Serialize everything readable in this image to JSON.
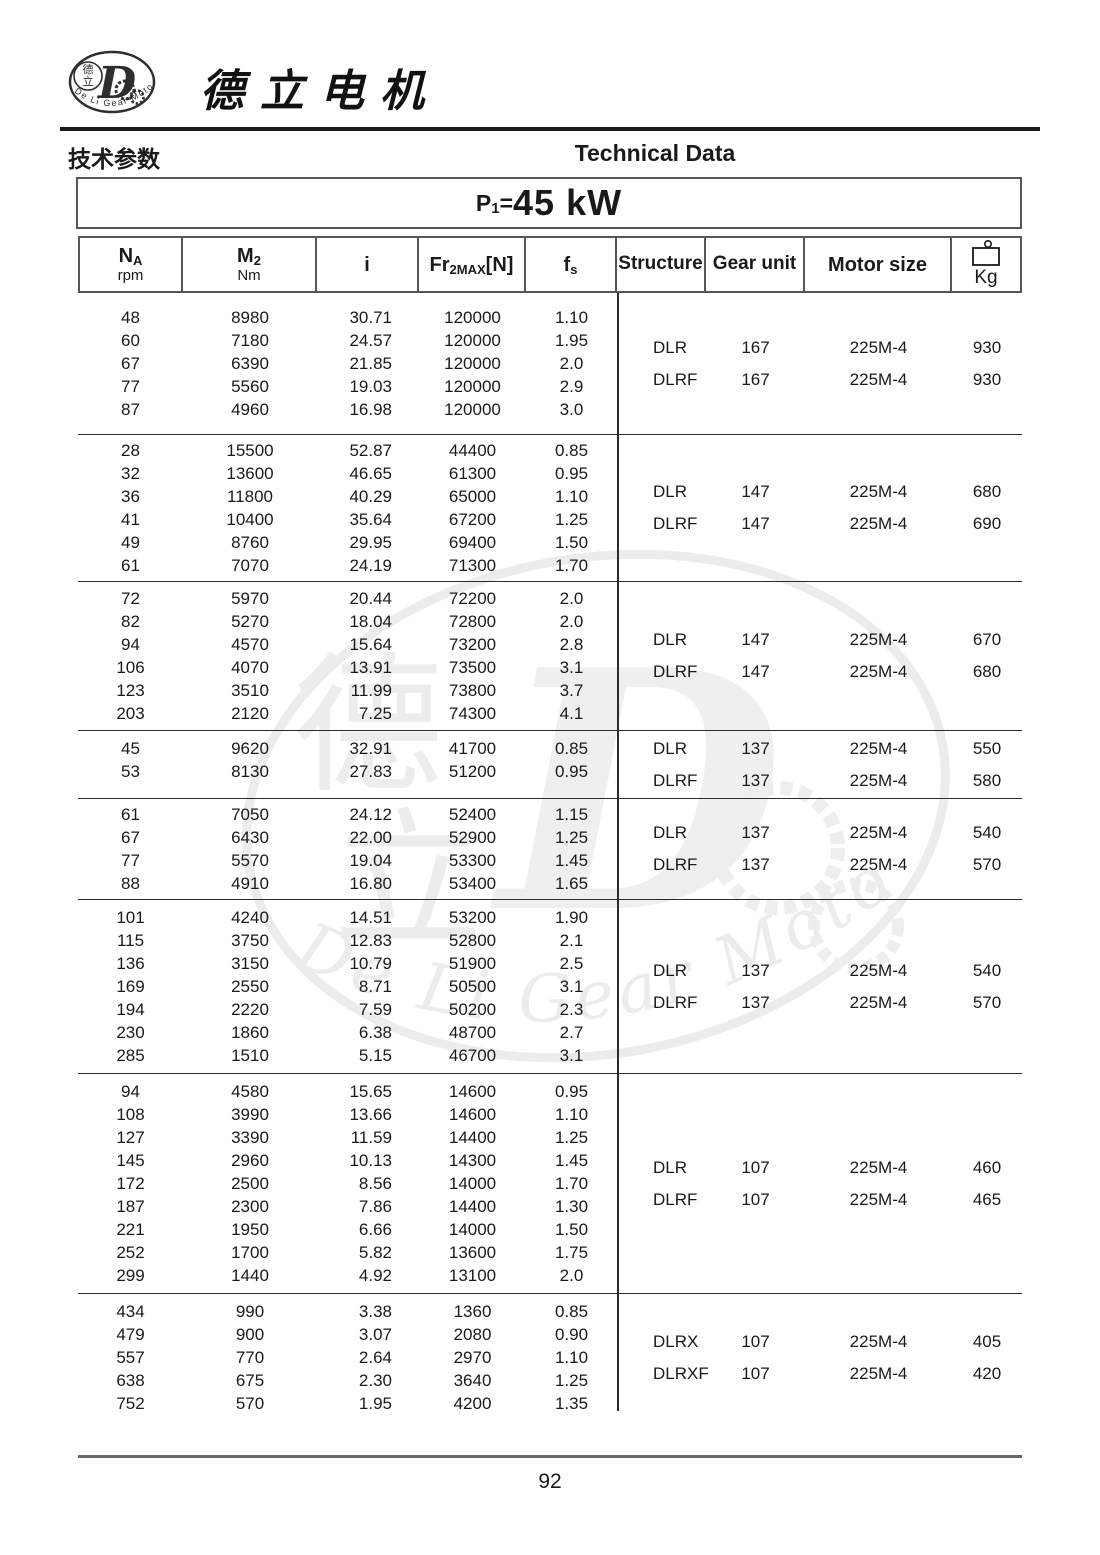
{
  "brand": {
    "name": "德立电机",
    "logo": {
      "letter": "D",
      "cn_top": "德",
      "cn_bottom": "立",
      "arc_text": "De Li Gear Motor"
    }
  },
  "section": {
    "title_cn": "技术参数",
    "title_en": "Technical Data"
  },
  "power": {
    "symbol": "P",
    "subscript": "1",
    "equals": "=",
    "value": "45 kW"
  },
  "columns": {
    "na": {
      "symbol": "N",
      "sub": "A",
      "unit": "rpm"
    },
    "m2": {
      "symbol": "M",
      "sub": "2",
      "unit": "Nm"
    },
    "ratio": {
      "symbol": "i"
    },
    "fr": {
      "symbol": "Fr",
      "sub": "2MAX",
      "bracket": "[N]"
    },
    "fs": {
      "symbol": "f",
      "sub": "s"
    },
    "structure": "Structure",
    "gear_unit": "Gear unit",
    "motor_size": "Motor size",
    "weight_unit": "Kg",
    "weight_icon": "weight-icon"
  },
  "table": {
    "groups": [
      {
        "rows": [
          [
            "48",
            "8980",
            "30.71",
            "120000",
            "1.10"
          ],
          [
            "60",
            "7180",
            "24.57",
            "120000",
            "1.95"
          ],
          [
            "67",
            "6390",
            "21.85",
            "120000",
            "2.0"
          ],
          [
            "77",
            "5560",
            "19.03",
            "120000",
            "2.9"
          ],
          [
            "87",
            "4960",
            "16.98",
            "120000",
            "3.0"
          ]
        ],
        "variants": [
          {
            "structure": "DLR",
            "gear_unit": "167",
            "motor_size": "225M-4",
            "weight": "930"
          },
          {
            "structure": "DLRF",
            "gear_unit": "167",
            "motor_size": "225M-4",
            "weight": "930"
          }
        ]
      },
      {
        "rows": [
          [
            "28",
            "15500",
            "52.87",
            "44400",
            "0.85"
          ],
          [
            "32",
            "13600",
            "46.65",
            "61300",
            "0.95"
          ],
          [
            "36",
            "11800",
            "40.29",
            "65000",
            "1.10"
          ],
          [
            "41",
            "10400",
            "35.64",
            "67200",
            "1.25"
          ],
          [
            "49",
            "8760",
            "29.95",
            "69400",
            "1.50"
          ],
          [
            "61",
            "7070",
            "24.19",
            "71300",
            "1.70"
          ]
        ],
        "variants": [
          {
            "structure": "DLR",
            "gear_unit": "147",
            "motor_size": "225M-4",
            "weight": "680"
          },
          {
            "structure": "DLRF",
            "gear_unit": "147",
            "motor_size": "225M-4",
            "weight": "690"
          }
        ]
      },
      {
        "rows": [
          [
            "72",
            "5970",
            "20.44",
            "72200",
            "2.0"
          ],
          [
            "82",
            "5270",
            "18.04",
            "72800",
            "2.0"
          ],
          [
            "94",
            "4570",
            "15.64",
            "73200",
            "2.8"
          ],
          [
            "106",
            "4070",
            "13.91",
            "73500",
            "3.1"
          ],
          [
            "123",
            "3510",
            "11.99",
            "73800",
            "3.7"
          ],
          [
            "203",
            "2120",
            "7.25",
            "74300",
            "4.1"
          ]
        ],
        "variants": [
          {
            "structure": "DLR",
            "gear_unit": "147",
            "motor_size": "225M-4",
            "weight": "670"
          },
          {
            "structure": "DLRF",
            "gear_unit": "147",
            "motor_size": "225M-4",
            "weight": "680"
          }
        ]
      },
      {
        "rows": [
          [
            "45",
            "9620",
            "32.91",
            "41700",
            "0.85"
          ],
          [
            "53",
            "8130",
            "27.83",
            "51200",
            "0.95"
          ]
        ],
        "variants": [
          {
            "structure": "DLR",
            "gear_unit": "137",
            "motor_size": "225M-4",
            "weight": "550"
          },
          {
            "structure": "DLRF",
            "gear_unit": "137",
            "motor_size": "225M-4",
            "weight": "580"
          }
        ]
      },
      {
        "rows": [
          [
            "61",
            "7050",
            "24.12",
            "52400",
            "1.15"
          ],
          [
            "67",
            "6430",
            "22.00",
            "52900",
            "1.25"
          ],
          [
            "77",
            "5570",
            "19.04",
            "53300",
            "1.45"
          ],
          [
            "88",
            "4910",
            "16.80",
            "53400",
            "1.65"
          ]
        ],
        "variants": [
          {
            "structure": "DLR",
            "gear_unit": "137",
            "motor_size": "225M-4",
            "weight": "540"
          },
          {
            "structure": "DLRF",
            "gear_unit": "137",
            "motor_size": "225M-4",
            "weight": "570"
          }
        ]
      },
      {
        "rows": [
          [
            "101",
            "4240",
            "14.51",
            "53200",
            "1.90"
          ],
          [
            "115",
            "3750",
            "12.83",
            "52800",
            "2.1"
          ],
          [
            "136",
            "3150",
            "10.79",
            "51900",
            "2.5"
          ],
          [
            "169",
            "2550",
            "8.71",
            "50500",
            "3.1"
          ],
          [
            "194",
            "2220",
            "7.59",
            "50200",
            "2.3"
          ],
          [
            "230",
            "1860",
            "6.38",
            "48700",
            "2.7"
          ],
          [
            "285",
            "1510",
            "5.15",
            "46700",
            "3.1"
          ]
        ],
        "variants": [
          {
            "structure": "DLR",
            "gear_unit": "137",
            "motor_size": "225M-4",
            "weight": "540"
          },
          {
            "structure": "DLRF",
            "gear_unit": "137",
            "motor_size": "225M-4",
            "weight": "570"
          }
        ]
      },
      {
        "rows": [
          [
            "94",
            "4580",
            "15.65",
            "14600",
            "0.95"
          ],
          [
            "108",
            "3990",
            "13.66",
            "14600",
            "1.10"
          ],
          [
            "127",
            "3390",
            "11.59",
            "14400",
            "1.25"
          ],
          [
            "145",
            "2960",
            "10.13",
            "14300",
            "1.45"
          ],
          [
            "172",
            "2500",
            "8.56",
            "14000",
            "1.70"
          ],
          [
            "187",
            "2300",
            "7.86",
            "14400",
            "1.30"
          ],
          [
            "221",
            "1950",
            "6.66",
            "14000",
            "1.50"
          ],
          [
            "252",
            "1700",
            "5.82",
            "13600",
            "1.75"
          ],
          [
            "299",
            "1440",
            "4.92",
            "13100",
            "2.0"
          ]
        ],
        "variants": [
          {
            "structure": "DLR",
            "gear_unit": "107",
            "motor_size": "225M-4",
            "weight": "460"
          },
          {
            "structure": "DLRF",
            "gear_unit": "107",
            "motor_size": "225M-4",
            "weight": "465"
          }
        ]
      },
      {
        "rows": [
          [
            "434",
            "990",
            "3.38",
            "1360",
            "0.85"
          ],
          [
            "479",
            "900",
            "3.07",
            "2080",
            "0.90"
          ],
          [
            "557",
            "770",
            "2.64",
            "2970",
            "1.10"
          ],
          [
            "638",
            "675",
            "2.30",
            "3640",
            "1.25"
          ],
          [
            "752",
            "570",
            "1.95",
            "4200",
            "1.35"
          ]
        ],
        "variants": [
          {
            "structure": "DLRX",
            "gear_unit": "107",
            "motor_size": "225M-4",
            "weight": "405"
          },
          {
            "structure": "DLRXF",
            "gear_unit": "107",
            "motor_size": "225M-4",
            "weight": "420"
          }
        ]
      }
    ]
  },
  "page_number": "92",
  "colors": {
    "text": "#1a1a1a",
    "box_border": "#565656",
    "rule_line": "#2b2b2b",
    "watermark": "#ececec"
  }
}
